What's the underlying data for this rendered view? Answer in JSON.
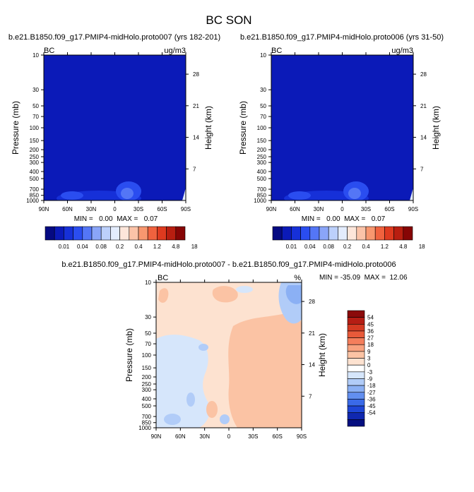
{
  "figure": {
    "title": "BC SON"
  },
  "chart_data": [
    {
      "type": "contour",
      "title": "b.e21.B1850.f09_g17.PMIP4-midHolo.proto007 (yrs 182-201)",
      "corner_left": "BC",
      "corner_right": "ug/m3",
      "ylabel": "Pressure (mb)",
      "ylabel_right": "Height (km)",
      "x_ticks": [
        "90N",
        "60N",
        "30N",
        "0",
        "30S",
        "60S",
        "90S"
      ],
      "y_ticks": [
        "10",
        "30",
        "50",
        "70",
        "100",
        "150",
        "200",
        "250",
        "300",
        "400",
        "500",
        "700",
        "850",
        "1000"
      ],
      "height_ticks": [
        "28",
        "21",
        "14",
        "7"
      ],
      "stats": "MIN =   0.00  MAX =   0.07",
      "colorbar_labels": [
        "0.01",
        "0.04",
        "0.08",
        "0.2",
        "0.4",
        "1.2",
        "4.8",
        "18"
      ],
      "colors": [
        "#050a82",
        "#0b1ab8",
        "#1630d8",
        "#2a4df0",
        "#5476f6",
        "#8aa5f8",
        "#bcd0fb",
        "#e3ecfd",
        "#fde6da",
        "#fbc3a8",
        "#f8976f",
        "#f0623e",
        "#de3a1f",
        "#b81e10",
        "#860505"
      ]
    },
    {
      "type": "contour",
      "title": "b.e21.B1850.f09_g17.PMIP4-midHolo.proto006 (yrs 31-50)",
      "corner_left": "BC",
      "corner_right": "ug/m3",
      "ylabel": "Pressure (mb)",
      "ylabel_right": "Height (km)",
      "x_ticks": [
        "90N",
        "60N",
        "30N",
        "0",
        "30S",
        "60S",
        "90S"
      ],
      "y_ticks": [
        "10",
        "30",
        "50",
        "70",
        "100",
        "150",
        "200",
        "250",
        "300",
        "400",
        "500",
        "700",
        "850",
        "1000"
      ],
      "height_ticks": [
        "28",
        "21",
        "14",
        "7"
      ],
      "stats": "MIN =   0.00  MAX =   0.07",
      "colorbar_labels": [
        "0.01",
        "0.04",
        "0.08",
        "0.2",
        "0.4",
        "1.2",
        "4.8",
        "18"
      ]
    },
    {
      "type": "contour",
      "title": "b.e21.B1850.f09_g17.PMIP4-midHolo.proto007 - b.e21.B1850.f09_g17.PMIP4-midHolo.proto006",
      "corner_left": "BC",
      "corner_right": "%",
      "ylabel": "Pressure (mb)",
      "ylabel_right": "Height (km)",
      "x_ticks": [
        "90N",
        "60N",
        "30N",
        "0",
        "30S",
        "60S",
        "90S"
      ],
      "y_ticks": [
        "10",
        "30",
        "50",
        "70",
        "100",
        "150",
        "200",
        "250",
        "300",
        "400",
        "500",
        "700",
        "850",
        "1000"
      ],
      "height_ticks": [
        "28",
        "21",
        "14",
        "7"
      ],
      "stats": "MIN = -35.09  MAX =  12.06",
      "colorbar_labels": [
        "54",
        "45",
        "36",
        "27",
        "18",
        "9",
        "3",
        "0",
        "-3",
        "-9",
        "-18",
        "-27",
        "-36",
        "-45",
        "-54"
      ],
      "colors": [
        "#8b0a0a",
        "#b51d14",
        "#d43a22",
        "#e85a3a",
        "#f47e5c",
        "#f8a27f",
        "#fbc3a4",
        "#fde2d0",
        "#ffffff",
        "#d6e6fb",
        "#b1ccf8",
        "#8bb0f4",
        "#628ff0",
        "#3a6ae8",
        "#1e46d6",
        "#1028b0",
        "#050f80"
      ]
    }
  ]
}
